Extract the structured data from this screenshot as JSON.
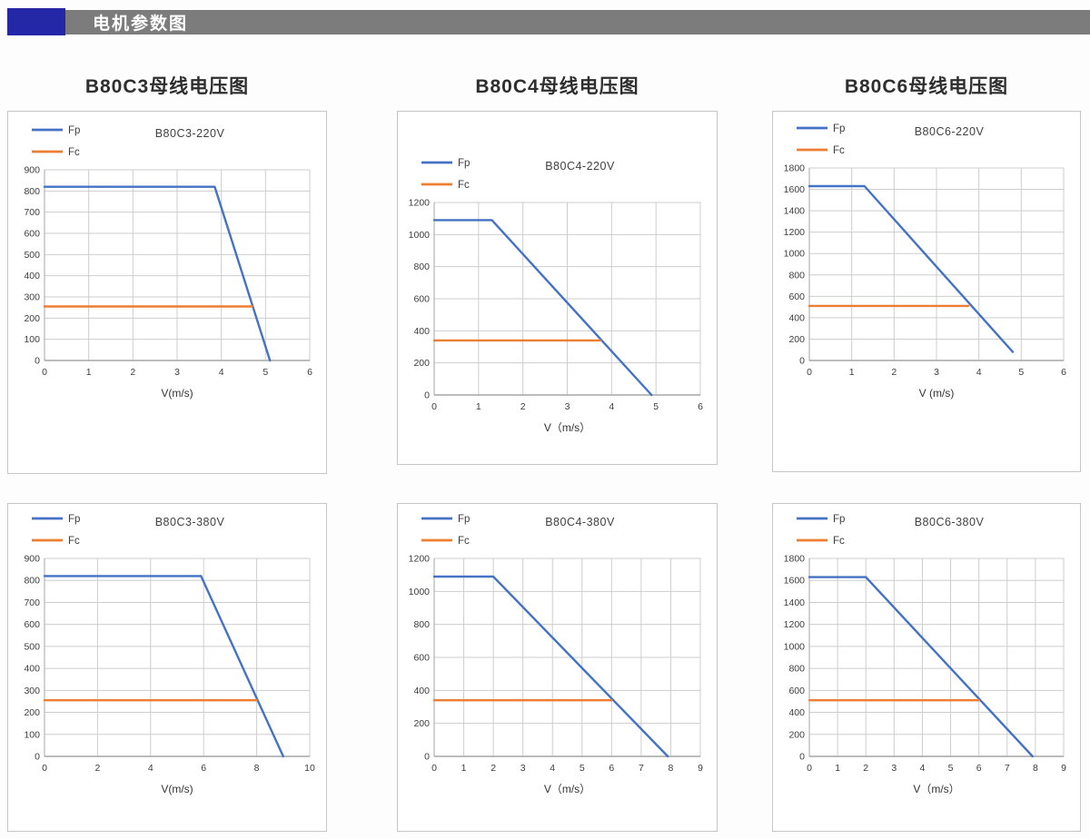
{
  "header": {
    "title": "电机参数图"
  },
  "colors": {
    "accent_blue": "#2528A6",
    "header_bar_gray": "#7C7C7C",
    "fp_blue": "#4472C4",
    "fc_orange": "#ED7D31",
    "grid": "#CDCDCD",
    "axis": "#A6A6A6",
    "panel_border": "#C6C6C6"
  },
  "section_titles": [
    "B80C3母线电压图",
    "B80C4母线电压图",
    "B80C6母线电压图"
  ],
  "chart_data": [
    {
      "type": "line",
      "title": "B80C3-220V",
      "section_title": "B80C3母线电压图",
      "xlabel": "V(m/s)",
      "xlim": [
        0,
        6
      ],
      "ylim": [
        0,
        900
      ],
      "xticks": [
        0,
        1,
        2,
        3,
        4,
        5,
        6
      ],
      "yticks": [
        0,
        100,
        200,
        300,
        400,
        500,
        600,
        700,
        800,
        900
      ],
      "grid": true,
      "legend_position": "top-left",
      "legend": [
        "Fp",
        "Fc"
      ],
      "series": [
        {
          "name": "Fp",
          "color": "#4472C4",
          "points": [
            [
              0,
              820
            ],
            [
              3.85,
              820
            ],
            [
              5.1,
              0
            ]
          ]
        },
        {
          "name": "Fc",
          "color": "#ED7D31",
          "points": [
            [
              0,
              255
            ],
            [
              4.7,
              255
            ]
          ]
        }
      ]
    },
    {
      "type": "line",
      "title": "B80C4-220V",
      "section_title": "B80C4母线电压图",
      "xlabel": "V（m/s）",
      "xlim": [
        0,
        6
      ],
      "ylim": [
        0,
        1200
      ],
      "xticks": [
        0,
        1,
        2,
        3,
        4,
        5,
        6
      ],
      "yticks": [
        0,
        200,
        400,
        600,
        800,
        1000,
        1200
      ],
      "grid": true,
      "legend_position": "top-left",
      "legend": [
        "Fp",
        "Fc"
      ],
      "series": [
        {
          "name": "Fp",
          "color": "#4472C4",
          "points": [
            [
              0,
              1090
            ],
            [
              1.3,
              1090
            ],
            [
              4.9,
              0
            ]
          ]
        },
        {
          "name": "Fc",
          "color": "#ED7D31",
          "points": [
            [
              0,
              340
            ],
            [
              3.75,
              340
            ]
          ]
        }
      ]
    },
    {
      "type": "line",
      "title": "B80C6-220V",
      "section_title": "B80C6母线电压图",
      "xlabel": "V (m/s)",
      "xlim": [
        0,
        6
      ],
      "ylim": [
        0,
        1800
      ],
      "xticks": [
        0,
        1,
        2,
        3,
        4,
        5,
        6
      ],
      "yticks": [
        0,
        200,
        400,
        600,
        800,
        1000,
        1200,
        1400,
        1600,
        1800
      ],
      "grid": true,
      "legend_position": "top-left",
      "legend": [
        "Fp",
        "Fc"
      ],
      "series": [
        {
          "name": "Fp",
          "color": "#4472C4",
          "points": [
            [
              0,
              1630
            ],
            [
              1.3,
              1630
            ],
            [
              4.8,
              80
            ]
          ]
        },
        {
          "name": "Fc",
          "color": "#ED7D31",
          "points": [
            [
              0,
              510
            ],
            [
              3.75,
              510
            ]
          ]
        }
      ]
    },
    {
      "type": "line",
      "title": "B80C3-380V",
      "xlabel": "V(m/s)",
      "xlim": [
        0,
        10
      ],
      "ylim": [
        0,
        900
      ],
      "xticks": [
        0,
        2,
        4,
        6,
        8,
        10
      ],
      "yticks": [
        0,
        100,
        200,
        300,
        400,
        500,
        600,
        700,
        800,
        900
      ],
      "grid": true,
      "legend_position": "top-left",
      "legend": [
        "Fp",
        "Fc"
      ],
      "series": [
        {
          "name": "Fp",
          "color": "#4472C4",
          "points": [
            [
              0,
              820
            ],
            [
              5.9,
              820
            ],
            [
              9,
              0
            ]
          ]
        },
        {
          "name": "Fc",
          "color": "#ED7D31",
          "points": [
            [
              0,
              255
            ],
            [
              8,
              255
            ]
          ]
        }
      ]
    },
    {
      "type": "line",
      "title": "B80C4-380V",
      "xlabel": "V（m/s）",
      "xlim": [
        0,
        9
      ],
      "ylim": [
        0,
        1200
      ],
      "xticks": [
        0,
        1,
        2,
        3,
        4,
        5,
        6,
        7,
        8,
        9
      ],
      "yticks": [
        0,
        200,
        400,
        600,
        800,
        1000,
        1200
      ],
      "grid": true,
      "legend_position": "top-left",
      "legend": [
        "Fp",
        "Fc"
      ],
      "series": [
        {
          "name": "Fp",
          "color": "#4472C4",
          "points": [
            [
              0,
              1090
            ],
            [
              2,
              1090
            ],
            [
              7.9,
              0
            ]
          ]
        },
        {
          "name": "Fc",
          "color": "#ED7D31",
          "points": [
            [
              0,
              340
            ],
            [
              6,
              340
            ]
          ]
        }
      ]
    },
    {
      "type": "line",
      "title": "B80C6-380V",
      "xlabel": "V（m/s）",
      "xlim": [
        0,
        9
      ],
      "ylim": [
        0,
        1800
      ],
      "xticks": [
        0,
        1,
        2,
        3,
        4,
        5,
        6,
        7,
        8,
        9
      ],
      "yticks": [
        0,
        200,
        400,
        600,
        800,
        1000,
        1200,
        1400,
        1600,
        1800
      ],
      "grid": true,
      "legend_position": "top-left",
      "legend": [
        "Fp",
        "Fc"
      ],
      "series": [
        {
          "name": "Fp",
          "color": "#4472C4",
          "points": [
            [
              0,
              1630
            ],
            [
              2,
              1630
            ],
            [
              7.9,
              0
            ]
          ]
        },
        {
          "name": "Fc",
          "color": "#ED7D31",
          "points": [
            [
              0,
              510
            ],
            [
              6,
              510
            ]
          ]
        }
      ]
    }
  ]
}
